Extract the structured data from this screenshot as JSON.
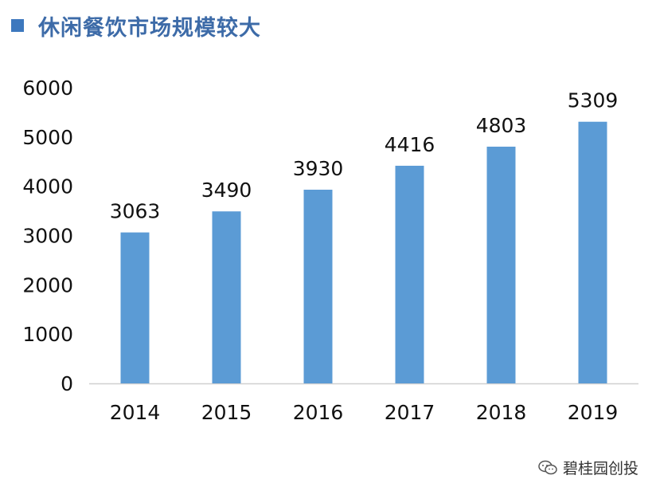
{
  "colors": {
    "bar": "#5B9BD5",
    "title": "#3D6BA8",
    "marker": "#3D78BE",
    "axis": "#D0D0D0",
    "text": "#111111"
  },
  "title_marker_icon": "square-bullet-icon",
  "chart_data": {
    "type": "bar",
    "title": "休闲餐饮市场规模较大",
    "categories": [
      "2014",
      "2015",
      "2016",
      "2017",
      "2018",
      "2019"
    ],
    "values": [
      3063,
      3490,
      3930,
      4416,
      4803,
      5309
    ],
    "ylim": [
      0,
      6000
    ],
    "yticks": [
      "0",
      "1000",
      "2000",
      "3000",
      "4000",
      "5000",
      "6000"
    ],
    "data_labels": true,
    "grid": false,
    "legend": "none"
  },
  "watermark": {
    "text": "碧桂园创投",
    "icon": "wechat-logo-icon"
  }
}
